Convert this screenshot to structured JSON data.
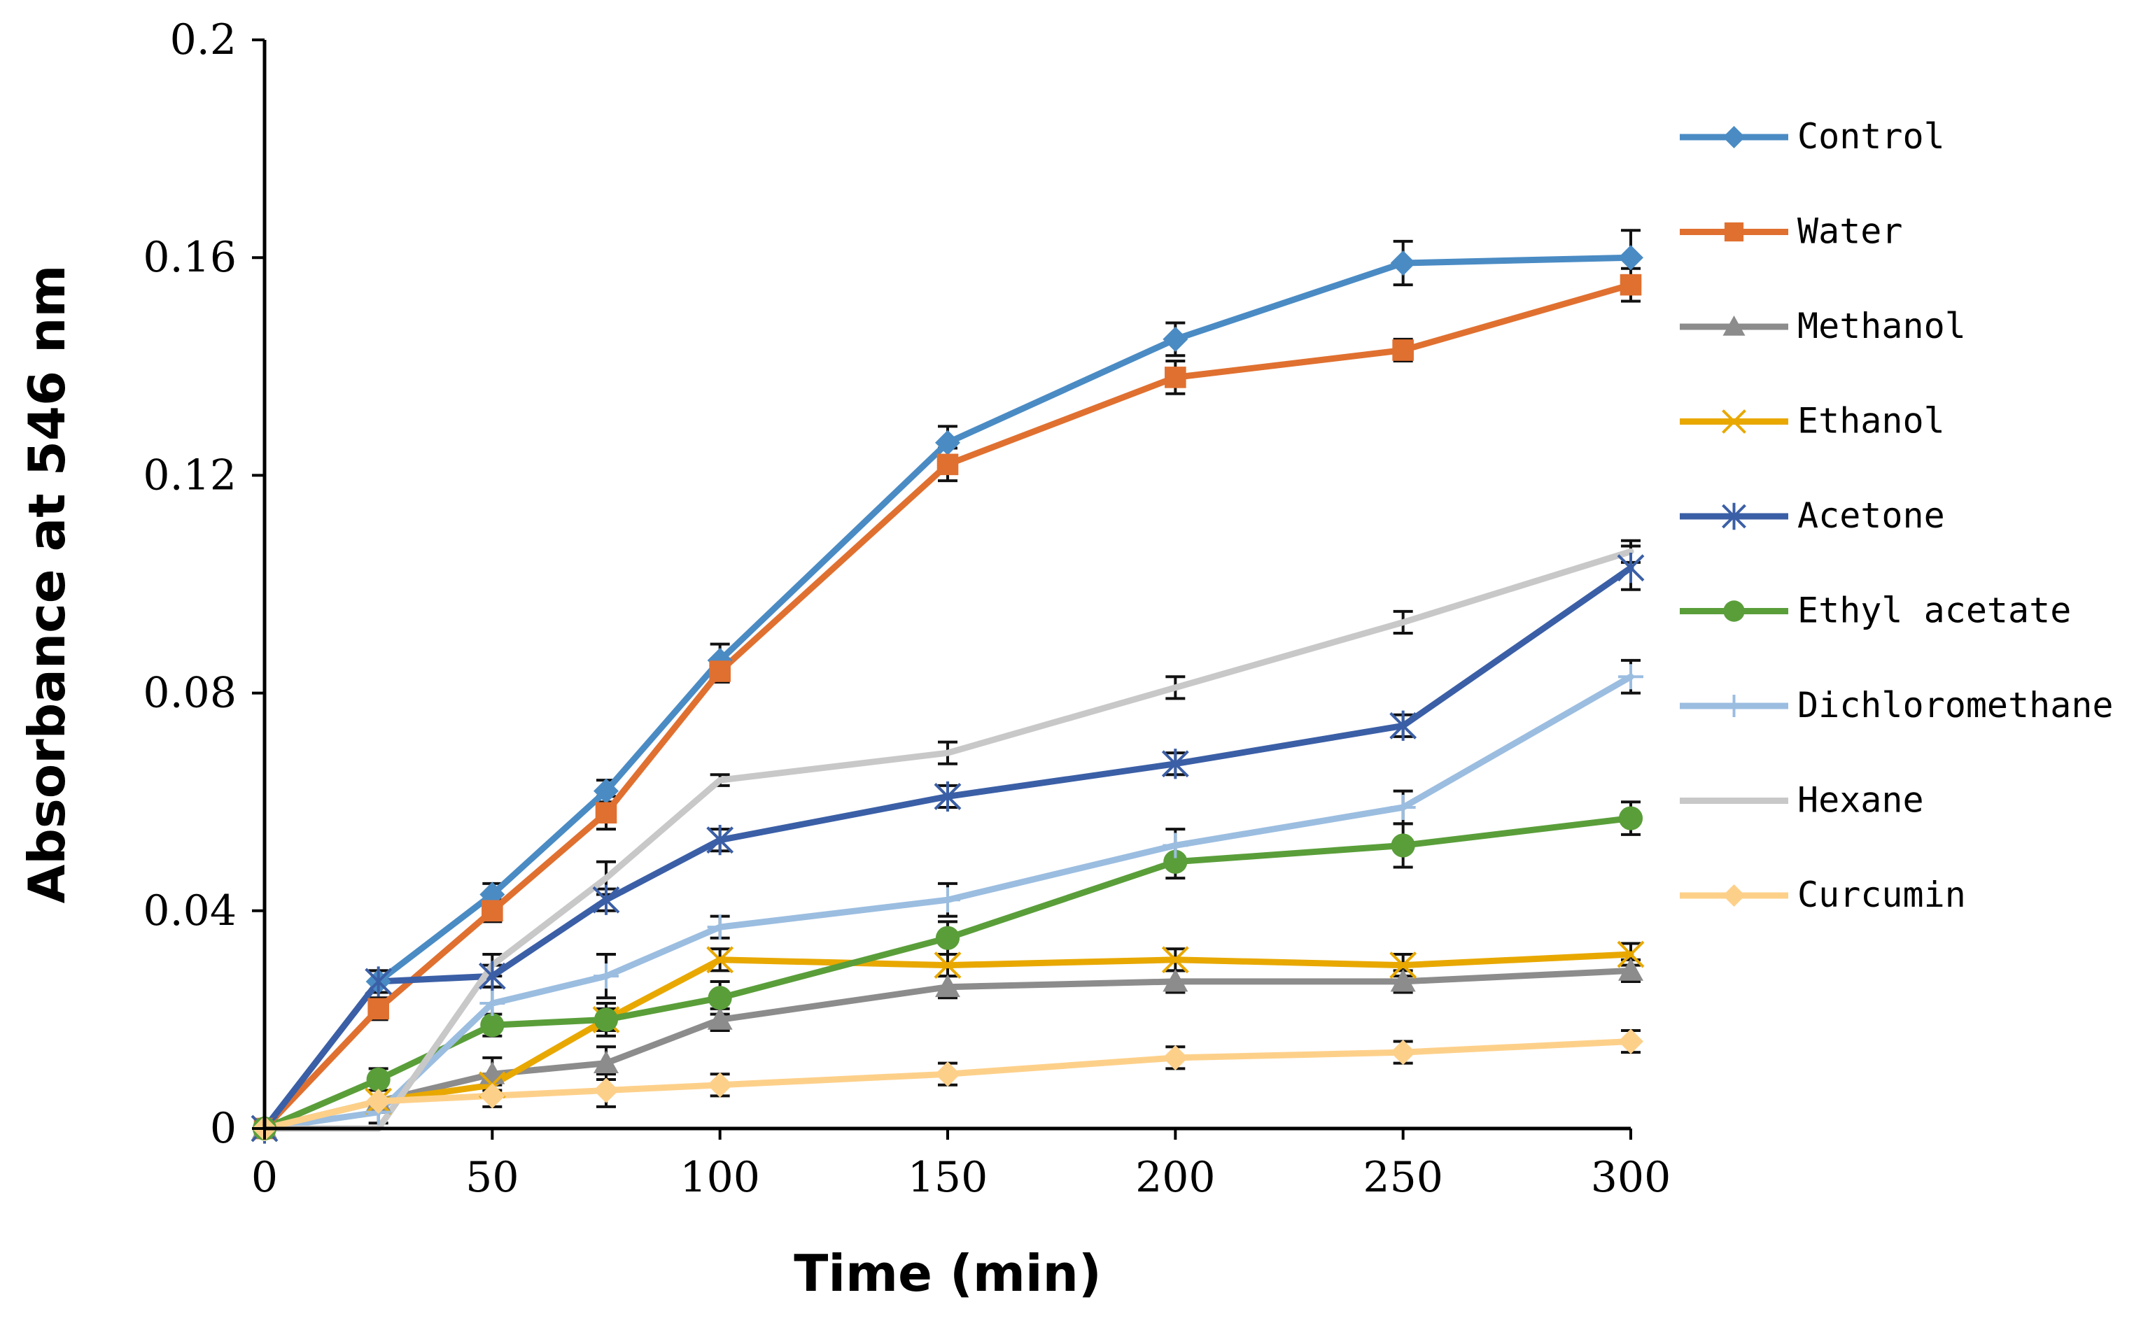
{
  "chart_data": {
    "type": "line",
    "xlabel": "Time (min)",
    "ylabel": "Absorbance at 546 nm",
    "xlim": [
      0,
      300
    ],
    "ylim": [
      0,
      0.2
    ],
    "x_ticks": [
      "0",
      "50",
      "100",
      "150",
      "200",
      "250",
      "300"
    ],
    "y_ticks": [
      "0",
      "0.04",
      "0.08",
      "0.12",
      "0.16",
      "0.2"
    ],
    "grid": false,
    "legend_position": "right",
    "x": [
      0,
      25,
      50,
      75,
      100,
      150,
      200,
      250,
      300
    ],
    "series": [
      {
        "name": "Control",
        "color": "#4a8bc4",
        "marker": "diamond",
        "values": [
          0,
          0.027,
          0.043,
          0.062,
          0.086,
          0.126,
          0.145,
          0.159,
          0.16
        ],
        "errors": [
          0,
          0.002,
          0.002,
          0.002,
          0.003,
          0.003,
          0.003,
          0.004,
          0.005
        ]
      },
      {
        "name": "Water",
        "color": "#e07030",
        "marker": "square",
        "values": [
          0,
          0.022,
          0.04,
          0.058,
          0.084,
          0.122,
          0.138,
          0.143,
          0.155
        ],
        "errors": [
          0,
          0.002,
          0.002,
          0.003,
          0.002,
          0.003,
          0.003,
          0.002,
          0.003
        ]
      },
      {
        "name": "Methanol",
        "color": "#8c8c8c",
        "marker": "triangle",
        "values": [
          0,
          0.005,
          0.01,
          0.012,
          0.02,
          0.026,
          0.027,
          0.027,
          0.029
        ],
        "errors": [
          0,
          0.002,
          0.003,
          0.003,
          0.002,
          0.002,
          0.002,
          0.002,
          0.002
        ]
      },
      {
        "name": "Ethanol",
        "color": "#e8a800",
        "marker": "x",
        "values": [
          0,
          0.005,
          0.008,
          0.02,
          0.031,
          0.03,
          0.031,
          0.03,
          0.032
        ],
        "errors": [
          0,
          0.002,
          0.002,
          0.002,
          0.002,
          0.002,
          0.002,
          0.002,
          0.002
        ]
      },
      {
        "name": "Acetone",
        "color": "#3b5fa6",
        "marker": "asterisk",
        "values": [
          0,
          0.027,
          0.028,
          0.042,
          0.053,
          0.061,
          0.067,
          0.074,
          0.103
        ],
        "errors": [
          0,
          0.002,
          0.002,
          0.002,
          0.002,
          0.002,
          0.002,
          0.002,
          0.004
        ]
      },
      {
        "name": "Ethyl acetate",
        "color": "#5a9e3a",
        "marker": "circle",
        "values": [
          0,
          0.009,
          0.019,
          0.02,
          0.024,
          0.035,
          0.049,
          0.052,
          0.057
        ],
        "errors": [
          0,
          0.002,
          0.002,
          0.003,
          0.003,
          0.003,
          0.003,
          0.004,
          0.003
        ]
      },
      {
        "name": "Dichloromethane",
        "color": "#9bbde0",
        "marker": "plus",
        "values": [
          0,
          0.003,
          0.023,
          0.028,
          0.037,
          0.042,
          0.052,
          0.059,
          0.083
        ],
        "errors": [
          0,
          0.002,
          0.003,
          0.004,
          0.002,
          0.003,
          0.003,
          0.003,
          0.003
        ]
      },
      {
        "name": "Hexane",
        "color": "#c8c8c8",
        "marker": "none",
        "values": [
          0,
          0,
          0.03,
          0.046,
          0.064,
          0.069,
          0.081,
          0.093,
          0.106
        ],
        "errors": [
          0,
          0,
          0.002,
          0.003,
          0.001,
          0.002,
          0.002,
          0.002,
          0.002
        ]
      },
      {
        "name": "Curcumin",
        "color": "#fdd08a",
        "marker": "diamond",
        "values": [
          0,
          0.005,
          0.006,
          0.007,
          0.008,
          0.01,
          0.013,
          0.014,
          0.016
        ],
        "errors": [
          0,
          0.002,
          0.002,
          0.003,
          0.002,
          0.002,
          0.002,
          0.002,
          0.002
        ]
      }
    ]
  }
}
